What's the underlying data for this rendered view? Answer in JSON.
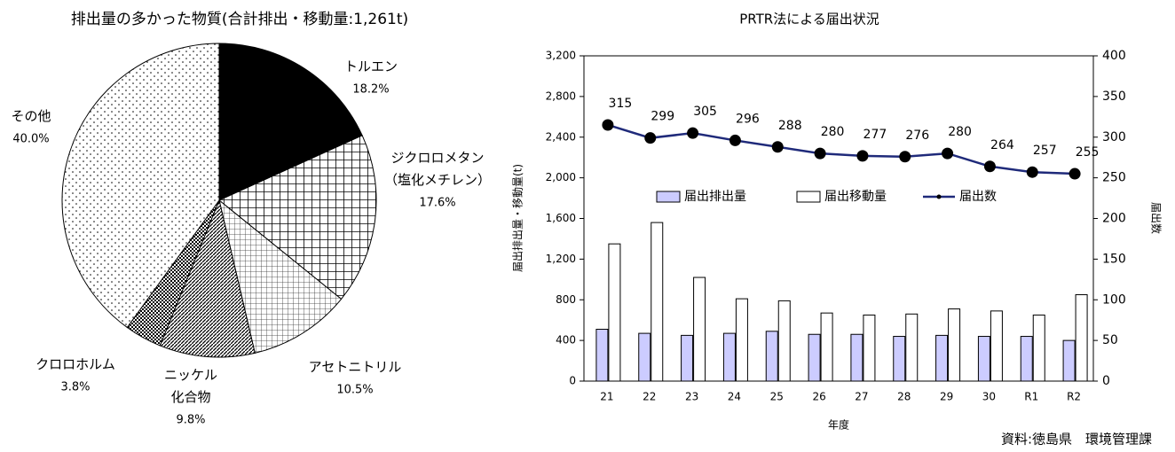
{
  "chart_data": [
    {
      "type": "pie",
      "title": "排出量の多かった物質(合計排出・移動量:1,261t)",
      "categories": [
        "トルエン",
        "ジクロロメタン\n（塩化メチレン）",
        "アセトニトリル",
        "ニッケル\n化合物",
        "クロロホルム",
        "その他"
      ],
      "values": [
        18.2,
        17.6,
        10.5,
        9.8,
        3.8,
        40.0
      ],
      "value_labels": [
        "18.2%",
        "17.6%",
        "10.5%",
        "9.8%",
        "3.8%",
        "40.0%"
      ]
    },
    {
      "type": "bar",
      "title": "PRTR法による届出状況",
      "categories": [
        "21",
        "22",
        "23",
        "24",
        "25",
        "26",
        "27",
        "28",
        "29",
        "30",
        "R1",
        "R2"
      ],
      "series": [
        {
          "name": "届出排出量",
          "color": "#ccccff",
          "values": [
            510,
            470,
            450,
            470,
            490,
            460,
            460,
            440,
            450,
            440,
            440,
            400
          ]
        },
        {
          "name": "届出移動量",
          "color": "#ffffff",
          "values": [
            1350,
            1560,
            1020,
            810,
            790,
            670,
            650,
            660,
            710,
            690,
            650,
            850
          ]
        },
        {
          "name": "届出数",
          "type": "line",
          "axis": "y2",
          "color": "#1f2a7a",
          "values": [
            315,
            299,
            305,
            296,
            288,
            280,
            277,
            276,
            280,
            264,
            257,
            255
          ]
        }
      ],
      "xlabel": "年度",
      "ylabel": "届出排出量・移動量(t)",
      "y2label": "届出数",
      "ylim": [
        0,
        3200
      ],
      "yticks": [
        0,
        {
          "value": 400,
          "label": "400"
        },
        800,
        {
          "value": 1200,
          "label": "1,200"
        },
        {
          "value": 1600,
          "label": "1,600"
        },
        {
          "value": 2000,
          "label": "2,000"
        },
        {
          "value": 2400,
          "label": "2,400"
        },
        {
          "value": 2800,
          "label": "2,800"
        },
        {
          "value": 3200,
          "label": "3,200"
        }
      ],
      "y2lim": [
        0,
        400
      ],
      "y2ticks": [
        0,
        50,
        100,
        150,
        200,
        250,
        300,
        350,
        400
      ],
      "source": "資料:徳島県　環境管理課"
    }
  ]
}
